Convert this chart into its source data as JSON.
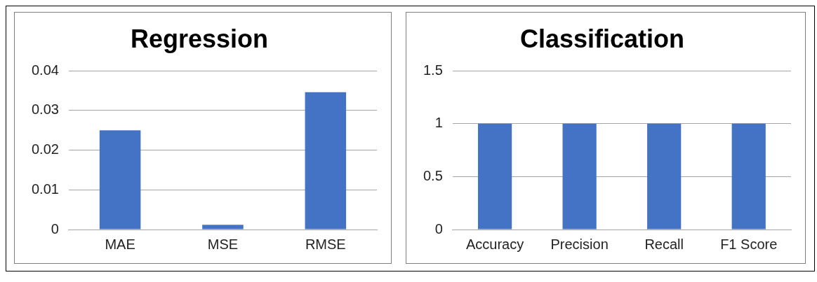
{
  "chart_data": [
    {
      "type": "bar",
      "title": "Regression",
      "categories": [
        "MAE",
        "MSE",
        "RMSE"
      ],
      "values": [
        0.025,
        0.0012,
        0.0346
      ],
      "color": "#4472c4",
      "ylim": [
        0,
        0.04
      ],
      "yticks": [
        0,
        0.01,
        0.02,
        0.03,
        0.04
      ],
      "grid": "y"
    },
    {
      "type": "bar",
      "title": "Classification",
      "categories": [
        "Accuracy",
        "Precision",
        "Recall",
        "F1 Score"
      ],
      "values": [
        1,
        1,
        1,
        1
      ],
      "color": "#4472c4",
      "ylim": [
        0,
        1.5
      ],
      "yticks": [
        0,
        0.5,
        1,
        1.5
      ],
      "grid": "y"
    }
  ]
}
